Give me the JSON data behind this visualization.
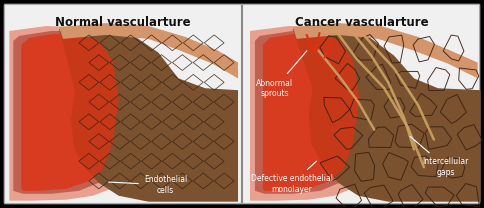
{
  "title_left": "Normal vascularture",
  "title_right": "Cancer vascularture",
  "label_endothelial": "Endothelial\ncells",
  "label_abnormal": "Abnormal\nsprouts",
  "label_defective": "Defective endothelial\nmonolayer",
  "label_intercellular": "Intercellular\ngaps",
  "bg_color": "#000000",
  "panel_bg": "#f0f0f0",
  "outer_vessel_color": "#e8a090",
  "inner_vessel_color": "#c06050",
  "tissue_color": "#7a5230",
  "skin_color": "#d4956a",
  "red_bright": "#e03010",
  "title_color": "#111111",
  "divider_color": "#888888",
  "annotation_color": "white",
  "tan_color": "#c8a060",
  "edge_color": "#aaaaaa"
}
